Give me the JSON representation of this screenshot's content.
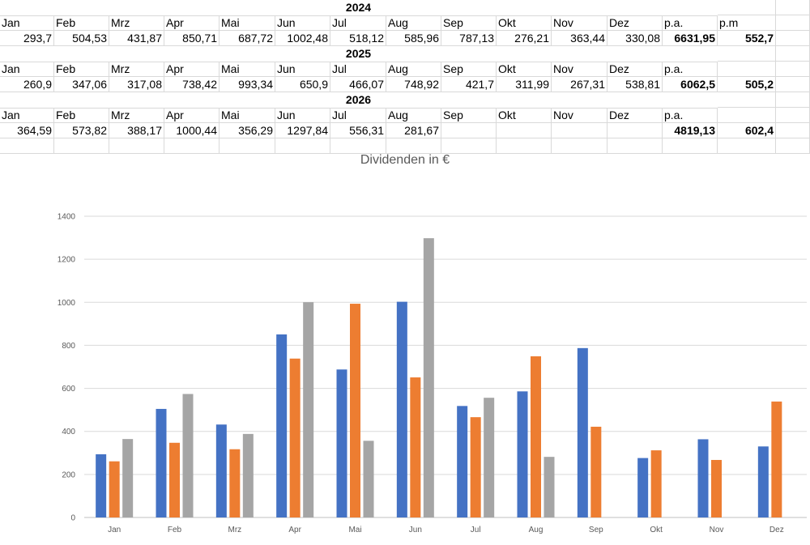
{
  "table": {
    "months": [
      "Jan",
      "Feb",
      "Mrz",
      "Apr",
      "Mai",
      "Jun",
      "Jul",
      "Aug",
      "Sep",
      "Okt",
      "Nov",
      "Dez"
    ],
    "pa_label": "p.a.",
    "pm_label": "p.m",
    "years": [
      {
        "year": "2024",
        "values": [
          "293,7",
          "504,53",
          "431,87",
          "850,71",
          "687,72",
          "1002,48",
          "518,12",
          "585,96",
          "787,13",
          "276,21",
          "363,44",
          "330,08"
        ],
        "pa": "6631,95",
        "pm": "552,7",
        "show_pm_label": true
      },
      {
        "year": "2025",
        "values": [
          "260,9",
          "347,06",
          "317,08",
          "738,42",
          "993,34",
          "650,9",
          "466,07",
          "748,92",
          "421,7",
          "311,99",
          "267,31",
          "538,81"
        ],
        "pa": "6062,5",
        "pm": "505,2",
        "show_pm_label": false
      },
      {
        "year": "2026",
        "values": [
          "364,59",
          "573,82",
          "388,17",
          "1000,44",
          "356,29",
          "1297,84",
          "556,31",
          "281,67",
          "",
          "",
          "",
          ""
        ],
        "pa": "4819,13",
        "pm": "602,4",
        "show_pm_label": false
      }
    ]
  },
  "chart_data": {
    "type": "bar",
    "title": "Dividenden in  €",
    "categories": [
      "Jan",
      "Feb",
      "Mrz",
      "Apr",
      "Mai",
      "Jun",
      "Jul",
      "Aug",
      "Sep",
      "Okt",
      "Nov",
      "Dez"
    ],
    "series": [
      {
        "values": [
          293.7,
          504.53,
          431.87,
          850.71,
          687.72,
          1002.48,
          518.12,
          585.96,
          787.13,
          276.21,
          363.44,
          330.08
        ],
        "color": "#4472c4"
      },
      {
        "values": [
          260.9,
          347.06,
          317.08,
          738.42,
          993.34,
          650.9,
          466.07,
          748.92,
          421.7,
          311.99,
          267.31,
          538.81
        ],
        "color": "#ed7d31"
      },
      {
        "values": [
          364.59,
          573.82,
          388.17,
          1000.44,
          356.29,
          1297.84,
          556.31,
          281.67,
          null,
          null,
          null,
          null
        ],
        "color": "#a5a5a5"
      }
    ],
    "ylim": [
      0,
      1400
    ],
    "yticks": [
      0,
      200,
      400,
      600,
      800,
      1000,
      1200,
      1400
    ],
    "grid": true,
    "legend": "none"
  }
}
